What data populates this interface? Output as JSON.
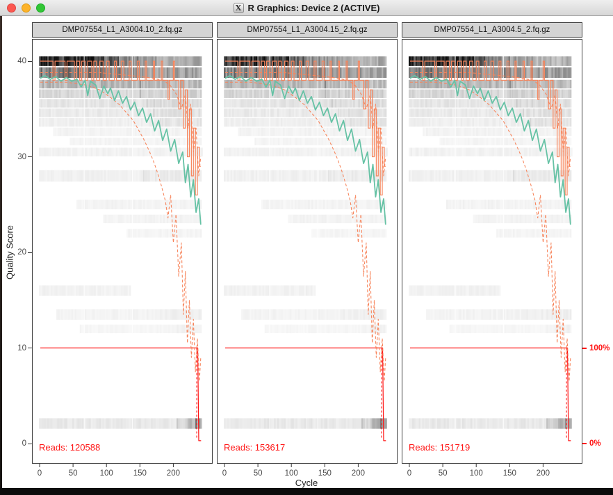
{
  "window": {
    "title": "R Graphics: Device 2 (ACTIVE)",
    "icon": "x11-icon",
    "icon_glyph": "X",
    "traffic_lights": [
      "close",
      "minimize",
      "zoom"
    ]
  },
  "axes": {
    "y_label": "Quality Score",
    "y_ticks": [
      0,
      10,
      20,
      30,
      40
    ],
    "x_label": "Cycle",
    "x_ticks": [
      0,
      50,
      100,
      150,
      200
    ],
    "right_ticks": [
      {
        "value": "100%",
        "quality": 10
      },
      {
        "value": "0%",
        "quality": 0
      }
    ]
  },
  "colors": {
    "mean": "#66c2a5",
    "median": "#f7855c",
    "quartile": "#f7855c",
    "percent": "#ff1414",
    "reads_text": "#ff1414",
    "strip_bg": "#d4d4d4",
    "panel_border": "#3f3f3f",
    "axis_text": "#4a4a4a"
  },
  "chart_data": {
    "type": "heatmap",
    "description": "Per-cycle base quality distribution (grayscale heatmap) with mean (teal), median (orange solid), quartiles (orange dashed) and percent-of-reads (red, right axis) for three FASTQ files",
    "xlabel": "Cycle",
    "ylabel": "Quality Score",
    "x_range": [
      0,
      255
    ],
    "y_range": [
      0,
      41.5
    ],
    "right_axis": {
      "top_label": "100%",
      "bottom_label": "0%",
      "maps_quality_10_to": "100%",
      "maps_quality_0_to": "0%"
    },
    "panels": [
      {
        "title": "DMP07554_L1_A3004.10_2.fq.gz",
        "reads_label": "Reads:",
        "reads": "120588",
        "texture_seed": 3
      },
      {
        "title": "DMP07554_L1_A3004.15_2.fq.gz",
        "reads_label": "Reads:",
        "reads": "153617",
        "texture_seed": 7
      },
      {
        "title": "DMP07554_L1_A3004.5_2.fq.gz",
        "reads_label": "Reads:",
        "reads": "151719",
        "texture_seed": 11
      }
    ],
    "series_shared": {
      "mean": [
        [
          1,
          38.2
        ],
        [
          8,
          38.5
        ],
        [
          16,
          38.1
        ],
        [
          24,
          38.4
        ],
        [
          32,
          37.9
        ],
        [
          40,
          38.3
        ],
        [
          48,
          37.9
        ],
        [
          56,
          38.1
        ],
        [
          62,
          37.3
        ],
        [
          68,
          38.0
        ],
        [
          72,
          36.4
        ],
        [
          76,
          37.9
        ],
        [
          84,
          37.5
        ],
        [
          90,
          36.1
        ],
        [
          96,
          37.4
        ],
        [
          102,
          36.6
        ],
        [
          106,
          37.2
        ],
        [
          112,
          35.9
        ],
        [
          118,
          36.9
        ],
        [
          124,
          35.6
        ],
        [
          130,
          36.3
        ],
        [
          136,
          34.9
        ],
        [
          142,
          35.7
        ],
        [
          148,
          34.3
        ],
        [
          154,
          35.1
        ],
        [
          160,
          33.6
        ],
        [
          166,
          34.5
        ],
        [
          172,
          32.7
        ],
        [
          178,
          33.8
        ],
        [
          184,
          31.7
        ],
        [
          190,
          32.9
        ],
        [
          196,
          30.6
        ],
        [
          202,
          31.8
        ],
        [
          208,
          29.3
        ],
        [
          214,
          30.5
        ],
        [
          218,
          27.3
        ],
        [
          222,
          29.2
        ],
        [
          226,
          25.8
        ],
        [
          230,
          27.6
        ],
        [
          234,
          24.2
        ],
        [
          238,
          25.6
        ],
        [
          241,
          22.9
        ]
      ],
      "median_steps": [
        [
          1,
          40
        ],
        [
          20,
          38
        ],
        [
          23,
          40
        ],
        [
          38,
          38
        ],
        [
          41,
          40
        ],
        [
          52,
          38
        ],
        [
          55,
          40
        ],
        [
          60,
          38
        ],
        [
          63,
          40
        ],
        [
          68,
          38
        ],
        [
          72,
          40
        ],
        [
          78,
          38
        ],
        [
          81,
          40
        ],
        [
          85,
          38
        ],
        [
          90,
          40
        ],
        [
          95,
          38
        ],
        [
          100,
          40
        ],
        [
          104,
          38
        ],
        [
          112,
          40
        ],
        [
          115,
          38
        ],
        [
          122,
          40
        ],
        [
          126,
          38
        ],
        [
          134,
          40
        ],
        [
          137,
          38
        ],
        [
          146,
          40
        ],
        [
          149,
          38
        ],
        [
          158,
          40
        ],
        [
          160,
          38
        ],
        [
          170,
          40
        ],
        [
          172,
          38
        ],
        [
          182,
          40
        ],
        [
          184,
          38
        ],
        [
          192,
          36
        ],
        [
          194,
          38
        ],
        [
          200,
          40
        ],
        [
          202,
          38
        ],
        [
          208,
          35
        ],
        [
          211,
          38
        ],
        [
          215,
          33
        ],
        [
          218,
          37
        ],
        [
          221,
          30
        ],
        [
          224,
          35
        ],
        [
          227,
          28
        ],
        [
          230,
          33
        ],
        [
          233,
          26
        ],
        [
          236,
          31
        ],
        [
          239,
          29
        ],
        [
          241,
          29
        ]
      ],
      "upper_quartile": [
        [
          1,
          38.8
        ],
        [
          30,
          38.8
        ],
        [
          60,
          38.8
        ],
        [
          90,
          38.8
        ],
        [
          120,
          38.6
        ],
        [
          150,
          38.4
        ],
        [
          170,
          38.2
        ],
        [
          185,
          38.0
        ],
        [
          195,
          37.5
        ],
        [
          205,
          36.5
        ],
        [
          212,
          35.0
        ],
        [
          218,
          36.5
        ],
        [
          222,
          33.0
        ],
        [
          226,
          35.5
        ],
        [
          230,
          30.5
        ],
        [
          234,
          33.0
        ],
        [
          238,
          28.0
        ],
        [
          241,
          30.0
        ]
      ],
      "lower_quartile": [
        [
          1,
          37.8
        ],
        [
          40,
          37.8
        ],
        [
          70,
          37.5
        ],
        [
          90,
          37.0
        ],
        [
          100,
          36.5
        ],
        [
          110,
          36.0
        ],
        [
          120,
          35.4
        ],
        [
          130,
          34.6
        ],
        [
          140,
          33.8
        ],
        [
          148,
          32.8
        ],
        [
          156,
          31.8
        ],
        [
          164,
          30.6
        ],
        [
          170,
          29.6
        ],
        [
          176,
          28.4
        ],
        [
          182,
          27.0
        ],
        [
          188,
          25.4
        ],
        [
          192,
          23.6
        ],
        [
          196,
          26.0
        ],
        [
          200,
          21.0
        ],
        [
          204,
          24.0
        ],
        [
          208,
          17.5
        ],
        [
          212,
          21.0
        ],
        [
          215,
          13.5
        ],
        [
          218,
          18.0
        ],
        [
          221,
          10.5
        ],
        [
          224,
          15.0
        ],
        [
          227,
          9.0
        ],
        [
          230,
          13.0
        ],
        [
          233,
          7.5
        ],
        [
          236,
          11.0
        ],
        [
          239,
          6.5
        ],
        [
          241,
          9.0
        ]
      ],
      "percent_solid": [
        [
          1,
          10
        ],
        [
          236.5,
          10
        ],
        [
          238,
          0.3
        ],
        [
          241.5,
          0.3
        ]
      ],
      "percent_dashed": [
        [
          235,
          10
        ],
        [
          235,
          0.5
        ]
      ],
      "light_columns": [
        66,
        138
      ],
      "heatmap_rows": [
        {
          "q": 40.0,
          "h": 1.0,
          "segs": [
            [
              -1,
              96,
              0.8
            ],
            [
              96,
              118,
              0.58
            ],
            [
              118,
              150,
              0.44
            ],
            [
              150,
              185,
              0.36
            ],
            [
              185,
              230,
              0.28
            ],
            [
              230,
              242,
              0.33
            ]
          ]
        },
        {
          "q": 38.8,
          "h": 1.1,
          "segs": [
            [
              -1,
              96,
              0.5
            ],
            [
              96,
              150,
              0.44
            ],
            [
              150,
              242,
              0.37
            ]
          ]
        },
        {
          "q": 37.6,
          "h": 0.9,
          "segs": [
            [
              -1,
              150,
              0.27
            ],
            [
              150,
              242,
              0.25
            ]
          ]
        },
        {
          "q": 36.6,
          "h": 0.9,
          "segs": [
            [
              -1,
              150,
              0.15
            ],
            [
              150,
              242,
              0.17
            ]
          ]
        },
        {
          "q": 35.6,
          "h": 0.9,
          "segs": [
            [
              -1,
              160,
              0.1
            ],
            [
              160,
              242,
              0.13
            ]
          ]
        },
        {
          "q": 34.6,
          "h": 0.9,
          "segs": [
            [
              -1,
              170,
              0.08
            ],
            [
              170,
              242,
              0.11
            ]
          ]
        },
        {
          "q": 33.6,
          "h": 0.9,
          "segs": [
            [
              -1,
              180,
              0.06
            ],
            [
              180,
              242,
              0.1
            ]
          ]
        },
        {
          "q": 32.6,
          "h": 0.9,
          "segs": [
            [
              20,
              242,
              0.045
            ]
          ]
        },
        {
          "q": 31.6,
          "h": 0.8,
          "segs": [
            [
              45,
              242,
              0.04
            ]
          ]
        },
        {
          "q": 30.5,
          "h": 0.9,
          "segs": [
            [
              -1,
              242,
              0.05
            ]
          ]
        },
        {
          "q": 28.0,
          "h": 1.2,
          "segs": [
            [
              -1,
              155,
              0.055
            ],
            [
              155,
              242,
              0.075
            ]
          ]
        },
        {
          "q": 25.0,
          "h": 1.0,
          "segs": [
            [
              55,
              242,
              0.045
            ]
          ]
        },
        {
          "q": 23.5,
          "h": 0.9,
          "segs": [
            [
              95,
              242,
              0.045
            ]
          ]
        },
        {
          "q": 22.0,
          "h": 0.9,
          "segs": [
            [
              130,
              242,
              0.04
            ]
          ]
        },
        {
          "q": 16.0,
          "h": 1.1,
          "segs": [
            [
              -1,
              135,
              0.05
            ]
          ]
        },
        {
          "q": 13.5,
          "h": 1.1,
          "segs": [
            [
              25,
              175,
              0.045
            ],
            [
              175,
              242,
              0.06
            ]
          ]
        },
        {
          "q": 12.0,
          "h": 0.9,
          "segs": [
            [
              60,
              205,
              0.035
            ],
            [
              205,
              242,
              0.05
            ]
          ]
        },
        {
          "q": 2.1,
          "h": 1.1,
          "segs": [
            [
              -1,
              205,
              0.085
            ],
            [
              205,
              220,
              0.16
            ],
            [
              220,
              233,
              0.28
            ],
            [
              233,
              242,
              0.34
            ]
          ]
        }
      ]
    }
  }
}
